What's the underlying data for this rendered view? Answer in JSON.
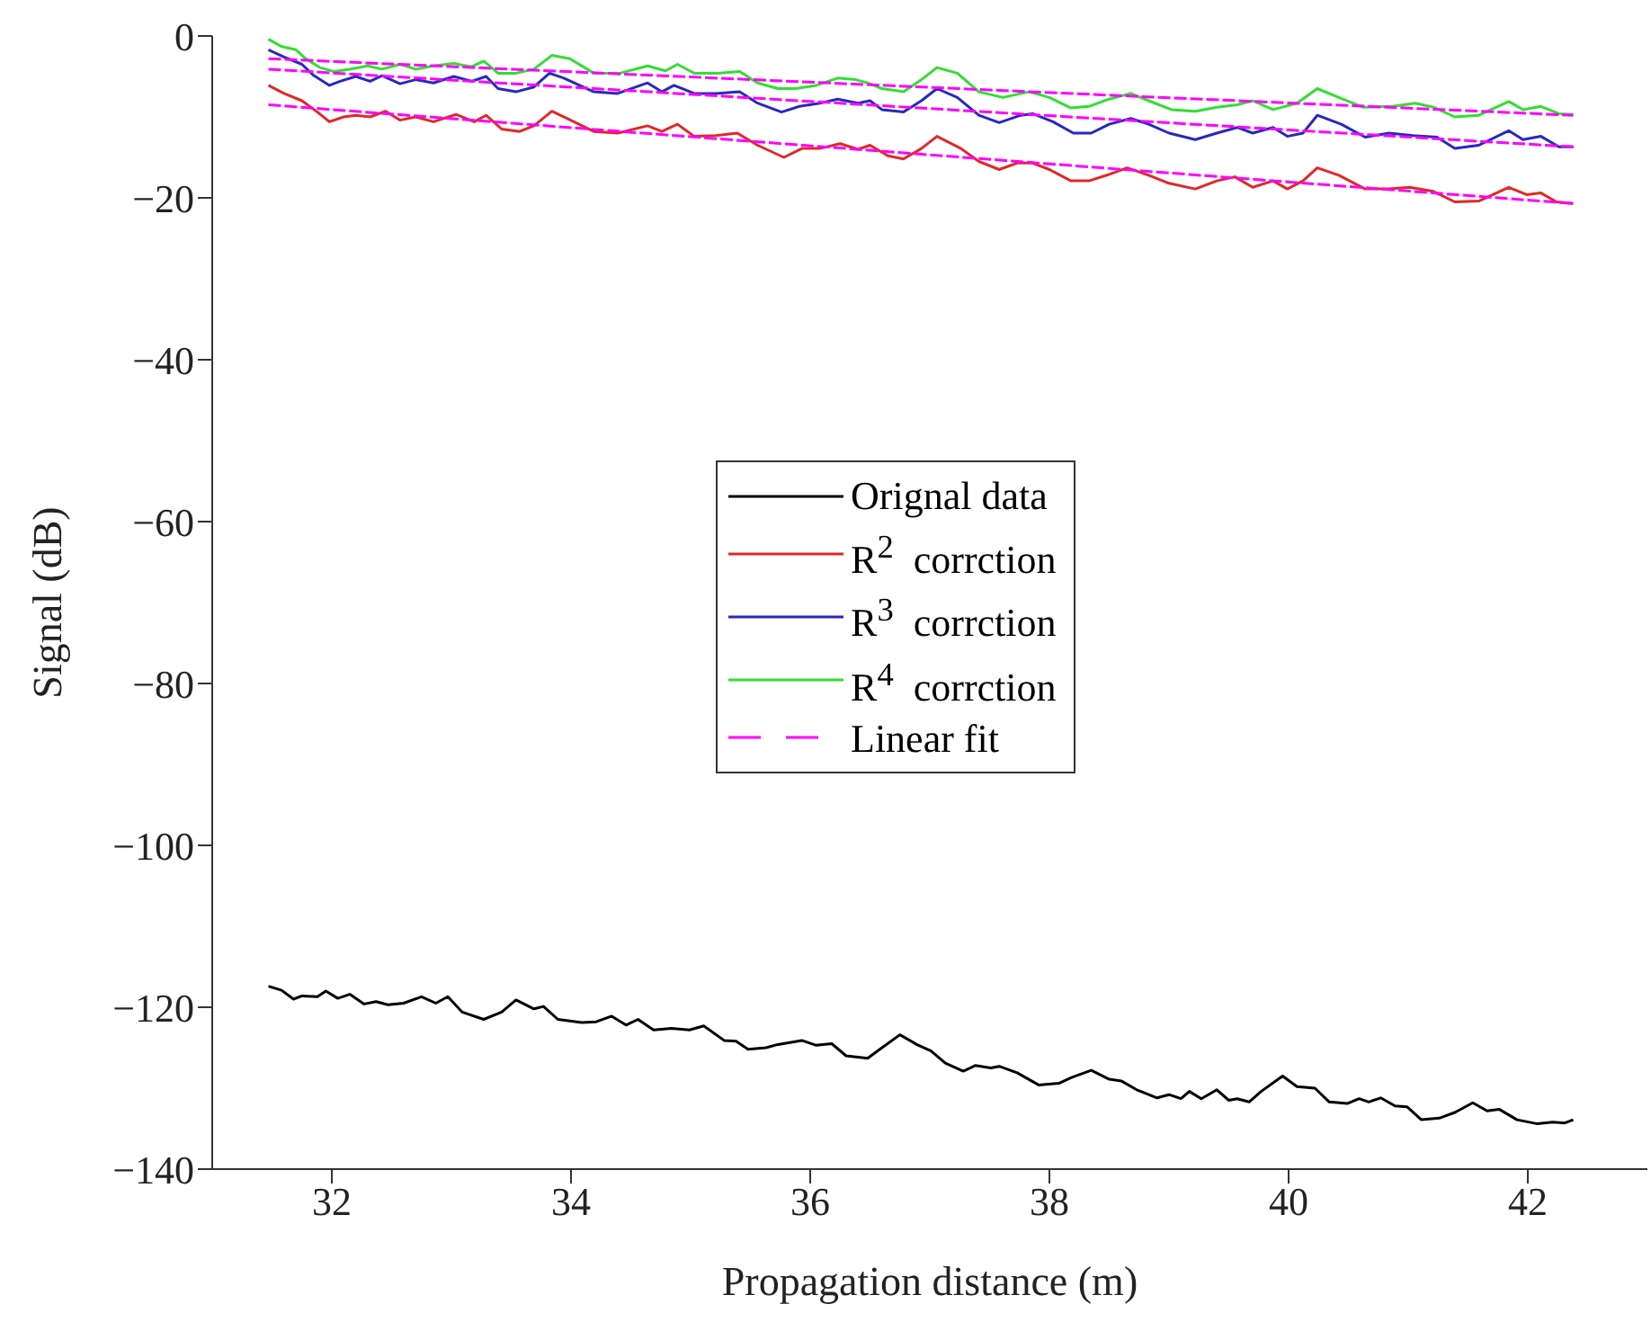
{
  "chart_data": {
    "type": "line",
    "xlabel": "Propagation distance (m)",
    "ylabel": "Signal (dB)",
    "xlim": [
      31,
      43
    ],
    "ylim": [
      -140,
      0
    ],
    "xticks": [
      32,
      34,
      36,
      38,
      40,
      42
    ],
    "yticks": [
      -140,
      -120,
      -100,
      -80,
      -60,
      -40,
      -20,
      0
    ],
    "legend": "center",
    "series": [
      {
        "name": "Orignal data",
        "color": "#000000",
        "x": [
          31.47,
          31.58,
          31.68,
          31.75,
          31.88,
          31.95,
          32.05,
          32.15,
          32.27,
          32.37,
          32.47,
          32.6,
          32.75,
          32.87,
          32.97,
          33.09,
          33.27,
          33.42,
          33.54,
          33.69,
          33.77,
          33.89,
          34.09,
          34.21,
          34.34,
          34.46,
          34.56,
          34.69,
          34.84,
          34.99,
          35.11,
          35.28,
          35.38,
          35.48,
          35.63,
          35.73,
          35.93,
          36.05,
          36.18,
          36.3,
          36.48,
          36.6,
          36.75,
          36.89,
          37.01,
          37.13,
          37.28,
          37.38,
          37.51,
          37.58,
          37.73,
          37.91,
          38.08,
          38.18,
          38.35,
          38.5,
          38.6,
          38.73,
          38.9,
          39.0,
          39.1,
          39.17,
          39.27,
          39.4,
          39.5,
          39.57,
          39.67,
          39.77,
          39.95,
          40.07,
          40.22,
          40.34,
          40.49,
          40.59,
          40.67,
          40.77,
          40.89,
          40.99,
          41.11,
          41.26,
          41.39,
          41.54,
          41.66,
          41.76,
          41.91,
          42.08,
          42.21,
          42.31,
          42.38
        ],
        "values": [
          -117.4,
          -117.9,
          -119.0,
          -118.6,
          -118.7,
          -118.0,
          -118.9,
          -118.4,
          -119.6,
          -119.3,
          -119.7,
          -119.5,
          -118.7,
          -119.5,
          -118.7,
          -120.6,
          -121.5,
          -120.6,
          -119.1,
          -120.2,
          -119.9,
          -121.5,
          -121.9,
          -121.8,
          -121.1,
          -122.2,
          -121.5,
          -122.8,
          -122.6,
          -122.8,
          -122.3,
          -124.1,
          -124.2,
          -125.2,
          -125.0,
          -124.6,
          -124.1,
          -124.7,
          -124.5,
          -126.0,
          -126.3,
          -125.0,
          -123.4,
          -124.6,
          -125.4,
          -126.9,
          -127.9,
          -127.2,
          -127.5,
          -127.3,
          -128.1,
          -129.6,
          -129.4,
          -128.7,
          -127.8,
          -128.9,
          -129.1,
          -130.2,
          -131.2,
          -130.8,
          -131.3,
          -130.4,
          -131.3,
          -130.2,
          -131.5,
          -131.3,
          -131.7,
          -130.4,
          -128.5,
          -129.8,
          -130.0,
          -131.7,
          -131.9,
          -131.3,
          -131.7,
          -131.2,
          -132.2,
          -132.3,
          -133.9,
          -133.7,
          -133.0,
          -131.8,
          -132.8,
          -132.6,
          -133.9,
          -134.4,
          -134.2,
          -134.3,
          -133.9
        ]
      },
      {
        "name": "R$^{2}$  corrction",
        "color": "#e02828",
        "x": [
          31.47,
          31.6,
          31.75,
          31.88,
          31.98,
          32.1,
          32.2,
          32.32,
          32.45,
          32.57,
          32.7,
          32.85,
          33.04,
          33.19,
          33.29,
          33.42,
          33.57,
          33.69,
          33.84,
          33.97,
          34.19,
          34.39,
          34.64,
          34.76,
          34.89,
          35.03,
          35.21,
          35.39,
          35.56,
          35.78,
          35.93,
          36.08,
          36.25,
          36.4,
          36.5,
          36.65,
          36.78,
          36.93,
          37.06,
          37.26,
          37.41,
          37.58,
          37.73,
          37.86,
          38.0,
          38.18,
          38.33,
          38.48,
          38.65,
          38.83,
          39.0,
          39.22,
          39.4,
          39.55,
          39.7,
          39.87,
          39.99,
          40.12,
          40.24,
          40.42,
          40.64,
          40.84,
          41.01,
          41.21,
          41.39,
          41.59,
          41.84,
          41.99,
          42.11,
          42.24,
          42.38
        ],
        "values": [
          -6.1,
          -7.1,
          -8.0,
          -9.4,
          -10.6,
          -10.0,
          -9.8,
          -10.0,
          -9.3,
          -10.4,
          -10.0,
          -10.6,
          -9.7,
          -10.6,
          -9.8,
          -11.5,
          -11.8,
          -11.1,
          -9.3,
          -10.2,
          -11.8,
          -12.0,
          -11.1,
          -11.8,
          -10.9,
          -12.4,
          -12.3,
          -12.0,
          -13.5,
          -15.0,
          -13.9,
          -13.9,
          -13.3,
          -14.0,
          -13.5,
          -14.8,
          -15.2,
          -13.9,
          -12.4,
          -13.9,
          -15.5,
          -16.5,
          -15.7,
          -15.7,
          -16.5,
          -17.9,
          -17.9,
          -17.2,
          -16.3,
          -17.2,
          -18.2,
          -18.9,
          -17.9,
          -17.4,
          -18.7,
          -17.9,
          -18.9,
          -17.9,
          -16.3,
          -17.2,
          -18.9,
          -18.9,
          -18.7,
          -19.2,
          -20.5,
          -20.4,
          -18.7,
          -19.6,
          -19.4,
          -20.5,
          -20.7
        ]
      },
      {
        "name": "R$^{3}$  corrction",
        "color": "#2828c0",
        "x": [
          31.47,
          31.6,
          31.75,
          31.85,
          31.98,
          32.07,
          32.2,
          32.32,
          32.42,
          32.57,
          32.7,
          32.85,
          33.02,
          33.17,
          33.29,
          33.39,
          33.54,
          33.69,
          33.82,
          33.94,
          34.19,
          34.39,
          34.64,
          34.76,
          34.86,
          35.03,
          35.21,
          35.41,
          35.56,
          35.76,
          35.91,
          36.08,
          36.23,
          36.4,
          36.5,
          36.6,
          36.78,
          36.93,
          37.06,
          37.23,
          37.41,
          37.58,
          37.76,
          37.86,
          38.03,
          38.2,
          38.35,
          38.5,
          38.68,
          38.83,
          39.0,
          39.22,
          39.4,
          39.57,
          39.7,
          39.87,
          39.99,
          40.12,
          40.24,
          40.44,
          40.64,
          40.84,
          41.04,
          41.24,
          41.39,
          41.59,
          41.84,
          41.96,
          42.11,
          42.26,
          42.38
        ],
        "values": [
          -1.7,
          -2.6,
          -3.5,
          -4.9,
          -6.1,
          -5.6,
          -5.0,
          -5.6,
          -4.9,
          -5.9,
          -5.4,
          -5.8,
          -5.0,
          -5.6,
          -5.0,
          -6.5,
          -6.9,
          -6.3,
          -4.6,
          -5.2,
          -6.9,
          -7.1,
          -5.8,
          -6.9,
          -6.1,
          -7.1,
          -7.1,
          -6.9,
          -8.3,
          -9.4,
          -8.7,
          -8.3,
          -7.8,
          -8.3,
          -8.0,
          -9.1,
          -9.4,
          -8.0,
          -6.5,
          -7.6,
          -9.8,
          -10.7,
          -9.8,
          -9.6,
          -10.6,
          -12.0,
          -12.0,
          -10.9,
          -10.2,
          -10.9,
          -12.0,
          -12.8,
          -12.0,
          -11.3,
          -12.0,
          -11.3,
          -12.4,
          -12.0,
          -9.8,
          -10.9,
          -12.5,
          -12.0,
          -12.3,
          -12.5,
          -13.9,
          -13.5,
          -11.7,
          -12.8,
          -12.4,
          -13.7,
          -13.7
        ]
      },
      {
        "name": "R$^{4}$  corrction",
        "color": "#33dd33",
        "x": [
          31.47,
          31.58,
          31.7,
          31.78,
          31.9,
          32.02,
          32.15,
          32.3,
          32.42,
          32.57,
          32.7,
          32.85,
          33.02,
          33.17,
          33.27,
          33.39,
          33.54,
          33.69,
          33.84,
          33.99,
          34.19,
          34.41,
          34.64,
          34.79,
          34.89,
          35.03,
          35.23,
          35.41,
          35.56,
          35.73,
          35.88,
          36.05,
          36.23,
          36.38,
          36.48,
          36.6,
          36.78,
          36.93,
          37.06,
          37.23,
          37.41,
          37.61,
          37.83,
          38.0,
          38.18,
          38.33,
          38.5,
          38.68,
          38.83,
          39.02,
          39.22,
          39.4,
          39.57,
          39.7,
          39.87,
          40.07,
          40.24,
          40.42,
          40.62,
          40.87,
          41.06,
          41.21,
          41.39,
          41.59,
          41.84,
          41.96,
          42.11,
          42.26,
          42.38
        ],
        "values": [
          -0.4,
          -1.3,
          -1.7,
          -2.8,
          -3.9,
          -4.4,
          -4.1,
          -3.7,
          -4.1,
          -3.5,
          -4.1,
          -3.7,
          -3.4,
          -3.8,
          -3.1,
          -4.6,
          -4.6,
          -4.1,
          -2.4,
          -2.8,
          -4.6,
          -4.6,
          -3.7,
          -4.3,
          -3.5,
          -4.6,
          -4.6,
          -4.4,
          -5.8,
          -6.5,
          -6.5,
          -6.1,
          -5.2,
          -5.4,
          -5.8,
          -6.5,
          -6.9,
          -5.4,
          -3.9,
          -4.6,
          -6.9,
          -7.6,
          -6.9,
          -7.6,
          -8.9,
          -8.7,
          -7.8,
          -7.1,
          -8.0,
          -9.1,
          -9.3,
          -8.8,
          -8.5,
          -8.0,
          -9.1,
          -8.3,
          -6.5,
          -7.6,
          -8.8,
          -8.7,
          -8.3,
          -8.8,
          -10.0,
          -9.8,
          -8.1,
          -9.1,
          -8.7,
          -9.6,
          -9.7
        ]
      },
      {
        "name": "Linear fit",
        "color": "#ff00ff",
        "line_style": "dashed",
        "x": [
          31.47,
          42.38
        ],
        "values": [
          -8.5,
          -20.7
        ]
      },
      {
        "color": "#ff00ff",
        "line_style": "dashed",
        "x": [
          31.47,
          42.38
        ],
        "values": [
          -4.1,
          -13.7
        ]
      },
      {
        "color": "#ff00ff",
        "line_style": "dashed",
        "x": [
          31.47,
          42.38
        ],
        "values": [
          -2.8,
          -9.8
        ]
      }
    ]
  }
}
